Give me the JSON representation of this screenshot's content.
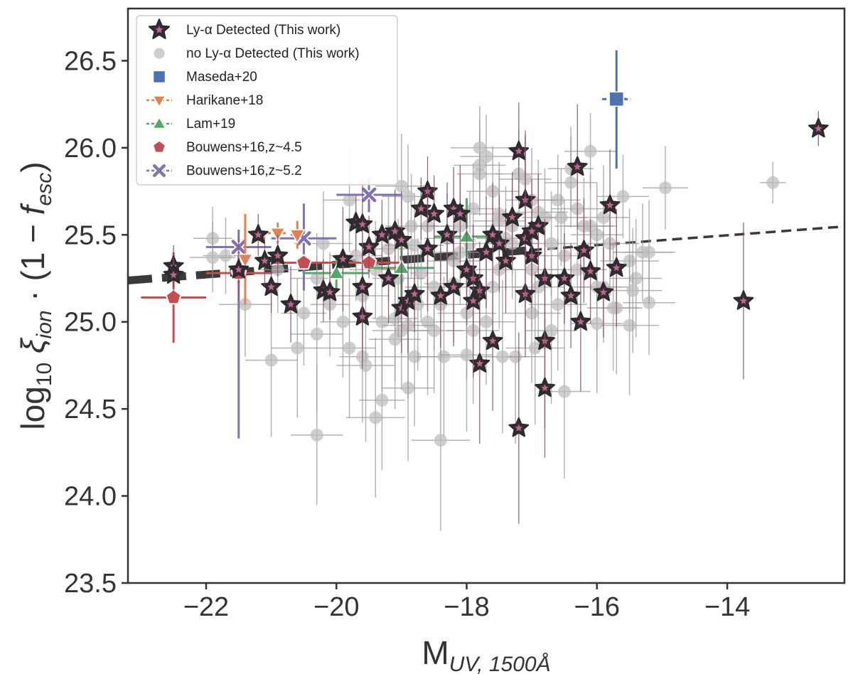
{
  "chart_data": {
    "type": "scatter",
    "xlabel": "M",
    "xlabel_sub": "UV, 1500Å",
    "ylabel_parts": [
      "log",
      "10",
      " ξ",
      "ion",
      " · (1 − ",
      "f",
      "esc",
      ")"
    ],
    "xlim": [
      -23.2,
      -12.2
    ],
    "ylim": [
      23.5,
      26.8
    ],
    "xticks": [
      -22,
      -20,
      -18,
      -16,
      -14
    ],
    "xtick_labels": [
      "−22",
      "−20",
      "−18",
      "−16",
      "−14"
    ],
    "yticks": [
      23.5,
      24.0,
      24.5,
      25.0,
      25.5,
      26.0,
      26.5
    ],
    "ytick_labels": [
      "23.5",
      "24.0",
      "24.5",
      "25.0",
      "25.5",
      "26.0",
      "26.5"
    ],
    "legend": [
      {
        "key": "lya",
        "label": "Ly-α Detected (This work)"
      },
      {
        "key": "nolya",
        "label": "no Ly-α Detected (This work)"
      },
      {
        "key": "maseda",
        "label": "Maseda+20"
      },
      {
        "key": "harikane",
        "label": "Harikane+18"
      },
      {
        "key": "lam",
        "label": "Lam+19"
      },
      {
        "key": "b45",
        "label": "Bouwens+16,z~4.5"
      },
      {
        "key": "b52",
        "label": "Bouwens+16,z~5.2"
      }
    ],
    "colors": {
      "lya_fill": "#3a2a33",
      "lya_edge": "#2b2b2b",
      "lya_inner": "#b86a92",
      "nolya": "#bdbdbd",
      "maseda": "#4c72b0",
      "harikane": "#dd8452",
      "lam": "#55a868",
      "b45": "#c44e52",
      "b52": "#8172b2",
      "fit": "#3a3a3a"
    },
    "fit_line": {
      "x": [
        -23.2,
        -12.2
      ],
      "y": [
        25.238,
        25.548
      ],
      "solid_until": -17.0
    },
    "series": [
      {
        "name": "Ly-α Detected (This work)",
        "key": "lya",
        "x": [
          -22.5,
          -22.5,
          -21.5,
          -21.0,
          -21.1,
          -20.9,
          -20.7,
          -21.2,
          -20.2,
          -20.1,
          -19.6,
          -19.6,
          -19.5,
          -19.7,
          -19.3,
          -19.1,
          -19.0,
          -18.9,
          -18.8,
          -18.7,
          -18.6,
          -18.5,
          -18.3,
          -18.2,
          -18.1,
          -18.0,
          -17.9,
          -17.8,
          -17.7,
          -17.6,
          -17.5,
          -17.4,
          -17.3,
          -17.2,
          -17.1,
          -17.0,
          -16.9,
          -16.8,
          -16.5,
          -16.4,
          -16.3,
          -16.2,
          -16.1,
          -15.9,
          -15.8,
          -17.2,
          -17.8,
          -16.8,
          -16.8,
          -17.1,
          -18.2,
          -18.4,
          -19.0,
          -19.2,
          -17.1,
          -13.75,
          -12.6,
          -15.7,
          -16.25,
          -17.6,
          -17.9,
          -18.6,
          -19.6,
          -19.9,
          -17.0
        ],
        "y": [
          25.32,
          25.27,
          25.3,
          25.2,
          25.35,
          25.38,
          25.1,
          25.5,
          25.18,
          25.17,
          25.03,
          25.2,
          25.43,
          25.57,
          25.5,
          25.52,
          25.08,
          25.12,
          25.16,
          25.65,
          25.75,
          25.62,
          25.5,
          25.65,
          25.62,
          25.3,
          25.25,
          25.18,
          25.4,
          25.5,
          25.45,
          25.35,
          25.6,
          25.98,
          25.7,
          25.38,
          25.55,
          25.25,
          25.25,
          25.15,
          25.89,
          25.41,
          25.29,
          25.17,
          25.67,
          24.39,
          24.76,
          24.89,
          24.62,
          25.16,
          25.2,
          25.15,
          25.47,
          25.25,
          25.48,
          25.12,
          26.11,
          25.31,
          25.0,
          24.89,
          25.12,
          25.42,
          25.56,
          25.36,
          25.52
        ],
        "yerr": [
          0.12,
          0.1,
          0.18,
          0.15,
          0.14,
          0.12,
          0.22,
          0.12,
          0.18,
          0.16,
          0.3,
          0.22,
          0.18,
          0.16,
          0.2,
          0.24,
          0.26,
          0.3,
          0.22,
          0.18,
          0.2,
          0.22,
          0.3,
          0.24,
          0.28,
          0.32,
          0.26,
          0.28,
          0.32,
          0.3,
          0.28,
          0.3,
          0.26,
          0.28,
          0.36,
          0.3,
          0.3,
          0.34,
          0.26,
          0.3,
          0.36,
          0.3,
          0.3,
          0.26,
          0.32,
          0.55,
          0.46,
          0.5,
          0.4,
          0.36,
          0.34,
          0.3,
          0.28,
          0.26,
          0.62,
          0.45,
          0.1,
          0.34,
          0.4,
          0.4,
          0.44,
          0.36,
          0.26,
          0.3,
          0.3
        ]
      },
      {
        "name": "no Ly-α Detected (This work)",
        "key": "nolya",
        "x": [
          -21.9,
          -21.7,
          -21.4,
          -20.9,
          -20.5,
          -20.3,
          -20.1,
          -19.9,
          -19.7,
          -19.6,
          -19.4,
          -19.3,
          -19.2,
          -19.1,
          -19.0,
          -18.9,
          -18.8,
          -18.7,
          -18.6,
          -18.5,
          -18.4,
          -18.3,
          -18.2,
          -18.1,
          -18.0,
          -17.9,
          -17.8,
          -17.7,
          -17.6,
          -17.5,
          -17.4,
          -17.3,
          -17.2,
          -17.1,
          -17.0,
          -16.9,
          -16.8,
          -16.7,
          -16.6,
          -16.5,
          -16.4,
          -16.3,
          -16.2,
          -16.1,
          -16.0,
          -15.9,
          -15.8,
          -15.6,
          -15.5,
          -15.4,
          -15.3,
          -15.2,
          -14.95,
          -13.3,
          -20.3,
          -19.8,
          -19.4,
          -19.1,
          -18.85,
          -18.6,
          -18.35,
          -18.1,
          -17.8,
          -17.5,
          -17.25,
          -17.0,
          -16.7,
          -16.5,
          -16.3,
          -16.0,
          -15.75,
          -15.5,
          -15.2,
          -20.6,
          -20.2,
          -19.6,
          -19.3,
          -18.9,
          -18.5,
          -18.2,
          -17.9,
          -17.6,
          -17.3,
          -17.0,
          -16.6,
          -16.1,
          -15.7,
          -21.0,
          -19.55,
          -19.05,
          -18.75,
          -18.4,
          -17.95,
          -17.45,
          -16.95,
          -16.55,
          -16.0,
          -15.45,
          -21.9,
          -20.3,
          -19.8,
          -18.8,
          -18.0,
          -17.5,
          -16.9,
          -16.4,
          -15.9,
          -17.8,
          -17.7,
          -19.0,
          -18.9
        ],
        "y": [
          25.48,
          25.38,
          25.1,
          25.3,
          25.05,
          25.25,
          25.1,
          25.0,
          25.38,
          24.8,
          25.3,
          24.55,
          25.42,
          25.02,
          24.95,
          24.62,
          24.8,
          25.28,
          25.55,
          24.95,
          25.1,
          25.48,
          25.22,
          25.4,
          25.05,
          25.65,
          25.85,
          25.0,
          25.75,
          25.3,
          25.48,
          25.55,
          25.85,
          25.82,
          25.05,
          25.2,
          25.6,
          25.45,
          25.7,
          25.38,
          25.88,
          25.65,
          25.55,
          25.98,
          25.5,
          25.2,
          25.45,
          25.72,
          25.35,
          25.25,
          25.4,
          25.11,
          25.77,
          25.8,
          24.35,
          24.85,
          24.45,
          24.9,
          25.55,
          25.0,
          24.8,
          25.55,
          25.9,
          25.62,
          24.8,
          25.7,
          24.95,
          24.6,
          25.3,
          25.2,
          25.08,
          24.98,
          25.4,
          24.85,
          25.45,
          25.15,
          25.0,
          24.98,
          25.2,
          25.35,
          24.95,
          25.2,
          25.45,
          25.3,
          25.1,
          25.55,
          25.08,
          24.78,
          24.75,
          25.25,
          25.1,
          24.32,
          25.45,
          24.8,
          24.85,
          25.6,
          24.99,
          25.18,
          25.37,
          24.93,
          25.7,
          25.44,
          24.81,
          25.58,
          25.63,
          25.8,
          25.6,
          26.0,
          25.95,
          25.78,
          25.72
        ],
        "yerr": [
          0.18,
          0.22,
          0.3,
          0.25,
          0.3,
          0.26,
          0.3,
          0.32,
          0.26,
          0.38,
          0.28,
          0.4,
          0.3,
          0.36,
          0.34,
          0.42,
          0.4,
          0.28,
          0.24,
          0.36,
          0.32,
          0.26,
          0.34,
          0.3,
          0.38,
          0.26,
          0.24,
          0.36,
          0.26,
          0.34,
          0.3,
          0.28,
          0.26,
          0.26,
          0.4,
          0.34,
          0.28,
          0.3,
          0.26,
          0.32,
          0.24,
          0.26,
          0.28,
          0.22,
          0.3,
          0.32,
          0.3,
          0.24,
          0.3,
          0.34,
          0.28,
          0.3,
          0.24,
          0.12,
          0.4,
          0.4,
          0.46,
          0.4,
          0.3,
          0.42,
          0.46,
          0.3,
          0.26,
          0.3,
          0.5,
          0.3,
          0.42,
          0.5,
          0.34,
          0.36,
          0.36,
          0.4,
          0.3,
          0.4,
          0.3,
          0.36,
          0.4,
          0.42,
          0.36,
          0.32,
          0.42,
          0.36,
          0.32,
          0.34,
          0.38,
          0.3,
          0.38,
          0.44,
          0.44,
          0.34,
          0.38,
          0.52,
          0.3,
          0.44,
          0.44,
          0.28,
          0.4,
          0.36,
          0.2,
          0.44,
          0.3,
          0.3,
          0.44,
          0.3,
          0.3,
          0.26,
          0.3,
          0.24,
          0.24,
          0.3,
          0.3
        ],
        "xerr": [
          0.3,
          0.35,
          0.4,
          0.3,
          0.35,
          0.4,
          0.3,
          0.35,
          0.4,
          0.35,
          0.4,
          0.35,
          0.4,
          0.35,
          0.45,
          0.4,
          0.45,
          0.4,
          0.35,
          0.45,
          0.4,
          0.35,
          0.45,
          0.4,
          0.45,
          0.35,
          0.35,
          0.45,
          0.4,
          0.4,
          0.45,
          0.4,
          0.35,
          0.4,
          0.45,
          0.4,
          0.35,
          0.4,
          0.35,
          0.4,
          0.35,
          0.4,
          0.45,
          0.4,
          0.4,
          0.4,
          0.45,
          0.4,
          0.45,
          0.4,
          0.45,
          0.4,
          0.35,
          0.2,
          0.4,
          0.4,
          0.45,
          0.4,
          0.4,
          0.45,
          0.4,
          0.45,
          0.4,
          0.4,
          0.45,
          0.4,
          0.4,
          0.4,
          0.45,
          0.4,
          0.4,
          0.45,
          0.4,
          0.4,
          0.45,
          0.4,
          0.4,
          0.4,
          0.45,
          0.4,
          0.4,
          0.45,
          0.4,
          0.4,
          0.45,
          0.4,
          0.4,
          0.4,
          0.45,
          0.4,
          0.4,
          0.45,
          0.4,
          0.4,
          0.45,
          0.4,
          0.4,
          0.45,
          0.35,
          0.4,
          0.4,
          0.45,
          0.4,
          0.4,
          0.45,
          0.4,
          0.4,
          0.45,
          0.4,
          0.4,
          0.4
        ]
      },
      {
        "name": "Maseda+20",
        "key": "maseda",
        "x": [
          -15.7
        ],
        "y": [
          26.28
        ],
        "yerr_lo": [
          0.4
        ],
        "yerr_hi": [
          0.28
        ],
        "xerr": [
          0.22
        ]
      },
      {
        "name": "Harikane+18",
        "key": "harikane",
        "x": [
          -21.4,
          -20.9,
          -20.6
        ],
        "y": [
          25.36,
          25.51,
          25.5
        ],
        "yerr": [
          0.26,
          0.06,
          0.08
        ],
        "xerr": [
          0.0,
          0.15,
          0.1
        ]
      },
      {
        "name": "Lam+19",
        "key": "lam",
        "x": [
          -20.0,
          -19.0,
          -18.0
        ],
        "y": [
          25.28,
          25.31,
          25.49
        ],
        "yerr": [
          0.1,
          0.18,
          0.22
        ],
        "xerr": [
          0.5,
          0.5,
          0.5
        ]
      },
      {
        "name": "Bouwens+16,z~4.5",
        "key": "b45",
        "x": [
          -22.5,
          -21.5,
          -20.5,
          -19.5
        ],
        "y": [
          25.14,
          25.28,
          25.34,
          25.34
        ],
        "yerr": [
          0.26,
          0.06,
          0.04,
          0.05
        ],
        "xerr": [
          0.5,
          0.5,
          0.5,
          0.5
        ]
      },
      {
        "name": "Bouwens+16,z~5.2",
        "key": "b52",
        "x": [
          -21.5,
          -20.5,
          -19.5
        ],
        "y": [
          25.43,
          25.48,
          25.73
        ],
        "yerr_lo": [
          1.1,
          0.3,
          0.1
        ],
        "yerr_hi": [
          0.1,
          0.2,
          0.1
        ],
        "xerr": [
          0.5,
          0.5,
          0.5
        ]
      }
    ]
  }
}
